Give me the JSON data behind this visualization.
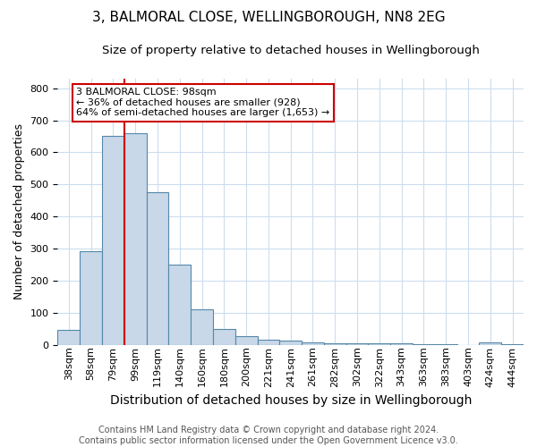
{
  "title": "3, BALMORAL CLOSE, WELLINGBOROUGH, NN8 2EG",
  "subtitle": "Size of property relative to detached houses in Wellingborough",
  "xlabel": "Distribution of detached houses by size in Wellingborough",
  "ylabel": "Number of detached properties",
  "footer_line1": "Contains HM Land Registry data © Crown copyright and database right 2024.",
  "footer_line2": "Contains public sector information licensed under the Open Government Licence v3.0.",
  "categories": [
    "38sqm",
    "58sqm",
    "79sqm",
    "99sqm",
    "119sqm",
    "140sqm",
    "160sqm",
    "180sqm",
    "200sqm",
    "221sqm",
    "241sqm",
    "261sqm",
    "282sqm",
    "302sqm",
    "322sqm",
    "343sqm",
    "363sqm",
    "383sqm",
    "403sqm",
    "424sqm",
    "444sqm"
  ],
  "values": [
    47,
    293,
    652,
    660,
    475,
    250,
    113,
    50,
    27,
    17,
    15,
    8,
    6,
    5,
    5,
    5,
    4,
    3,
    1,
    9,
    3
  ],
  "bar_color": "#c8d8e8",
  "bar_edge_color": "#5588aa",
  "property_line_color": "#cc0000",
  "annotation_text": "3 BALMORAL CLOSE: 98sqm\n← 36% of detached houses are smaller (928)\n64% of semi-detached houses are larger (1,653) →",
  "annotation_box_color": "#ffffff",
  "annotation_box_edge_color": "#cc0000",
  "ylim": [
    0,
    830
  ],
  "yticks": [
    0,
    100,
    200,
    300,
    400,
    500,
    600,
    700,
    800
  ],
  "background_color": "#ffffff",
  "grid_color": "#ccddee",
  "title_fontsize": 11,
  "subtitle_fontsize": 9.5,
  "xlabel_fontsize": 10,
  "ylabel_fontsize": 9,
  "tick_fontsize": 8,
  "annotation_fontsize": 8,
  "footer_fontsize": 7
}
